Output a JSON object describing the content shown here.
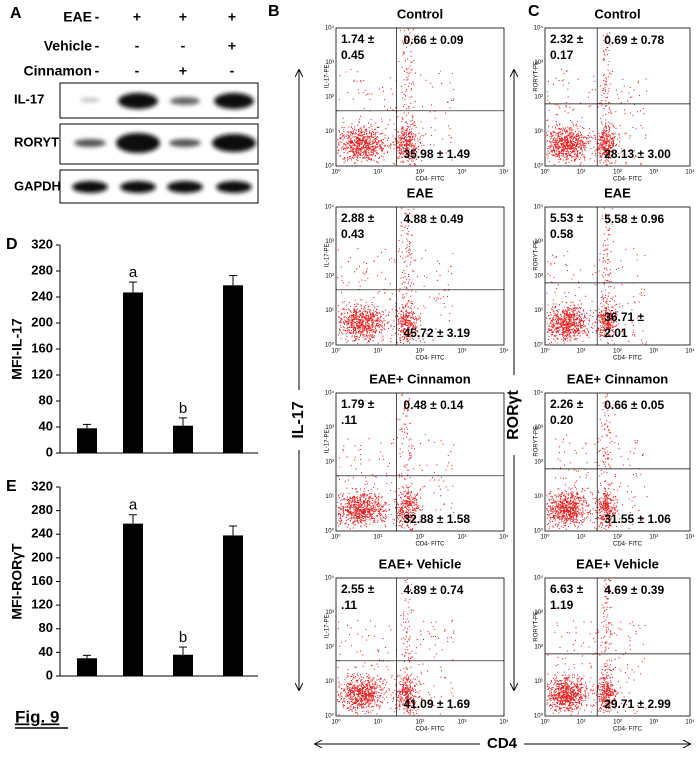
{
  "figure_label": "Fig. 9",
  "panel_a": {
    "label": "A",
    "rows": [
      {
        "name": "EAE",
        "signs": [
          "-",
          "+",
          "+",
          "+"
        ]
      },
      {
        "name": "Vehicle",
        "signs": [
          "-",
          "-",
          "-",
          "+"
        ]
      },
      {
        "name": "Cinnamon",
        "signs": [
          "-",
          "-",
          "+",
          "-"
        ]
      }
    ],
    "bands": [
      "IL-17",
      "RORYT",
      "GAPDH"
    ]
  },
  "chart_data": [
    {
      "type": "bar",
      "panel_label": "D",
      "ylabel": "MFI-IL-17",
      "categories": [
        null,
        null,
        null,
        null
      ],
      "values": [
        38,
        247,
        42,
        258
      ],
      "errors": [
        6,
        16,
        12,
        15
      ],
      "bar_labels": [
        null,
        "a",
        "b",
        null
      ],
      "color": "#000000",
      "ylim": [
        0,
        320
      ],
      "yticks": [
        0,
        40,
        80,
        120,
        160,
        200,
        240,
        280,
        320
      ]
    },
    {
      "type": "bar",
      "panel_label": "E",
      "ylabel": "MFI-RORγT",
      "categories": [
        null,
        null,
        null,
        null
      ],
      "values": [
        30,
        258,
        36,
        238
      ],
      "errors": [
        5,
        15,
        13,
        16
      ],
      "bar_labels": [
        null,
        "a",
        "b",
        null
      ],
      "color": "#000000",
      "ylim": [
        0,
        320
      ],
      "yticks": [
        0,
        40,
        80,
        120,
        160,
        200,
        240,
        280,
        320
      ]
    }
  ],
  "flow_ticks": [
    "10⁰",
    "10¹",
    "10²",
    "10³",
    "10⁴"
  ],
  "panel_b": {
    "label": "B",
    "y_axis_label": "IL-17-PE",
    "x_axis_label": "CD4- FITC",
    "plots": [
      {
        "title": "Control",
        "upper_left": [
          "1.74 ±",
          "0.45"
        ],
        "upper_right": [
          "0.66 ± 0.09"
        ],
        "lower_right": [
          "35.98 ± 1.49"
        ]
      },
      {
        "title": "EAE",
        "upper_left": [
          "2.88 ±",
          "0.43"
        ],
        "upper_right": [
          "4.88 ± 0.49"
        ],
        "lower_right": [
          "45.72 ± 3.19"
        ]
      },
      {
        "title": "EAE+ Cinnamon",
        "upper_left": [
          "1.79 ±",
          ".11"
        ],
        "upper_right": [
          "0.48 ± 0.14"
        ],
        "lower_right": [
          "32.88  ± 1.58"
        ]
      },
      {
        "title": "EAE+ Vehicle",
        "upper_left": [
          "2.55 ±",
          ".11"
        ],
        "upper_right": [
          "4.89 ± 0.74"
        ],
        "lower_right": [
          "41.09 ± 1.69"
        ]
      }
    ]
  },
  "panel_c": {
    "label": "C",
    "y_axis_label": "RORYT-PE",
    "x_axis_label": "CD4- FITC",
    "plots": [
      {
        "title": "Control",
        "upper_left": [
          "2.32 ±",
          "0.17"
        ],
        "upper_right": [
          "0.69 ± 0.78"
        ],
        "lower_right": [
          "28.13 ± 3.00"
        ]
      },
      {
        "title": "EAE",
        "upper_left": [
          "5.53 ±",
          "0.58"
        ],
        "upper_right": [
          "5.58 ± 0.96"
        ],
        "lower_right": [
          "36.71 ±",
          "2.01"
        ]
      },
      {
        "title": "EAE+ Cinnamon",
        "upper_left": [
          "2.26 ±",
          "0.20"
        ],
        "upper_right": [
          "0.66 ± 0.05"
        ],
        "lower_right": [
          "31.55 ± 1.06"
        ]
      },
      {
        "title": "EAE+ Vehicle",
        "upper_left": [
          "6.63 ±",
          "1.19"
        ],
        "upper_right": [
          "4.69 ± 0.39"
        ],
        "lower_right": [
          "29.71 ± 2.99"
        ]
      }
    ]
  },
  "side_labels": {
    "left": "IL-17",
    "right": "RORγt",
    "bottom": "CD4"
  }
}
